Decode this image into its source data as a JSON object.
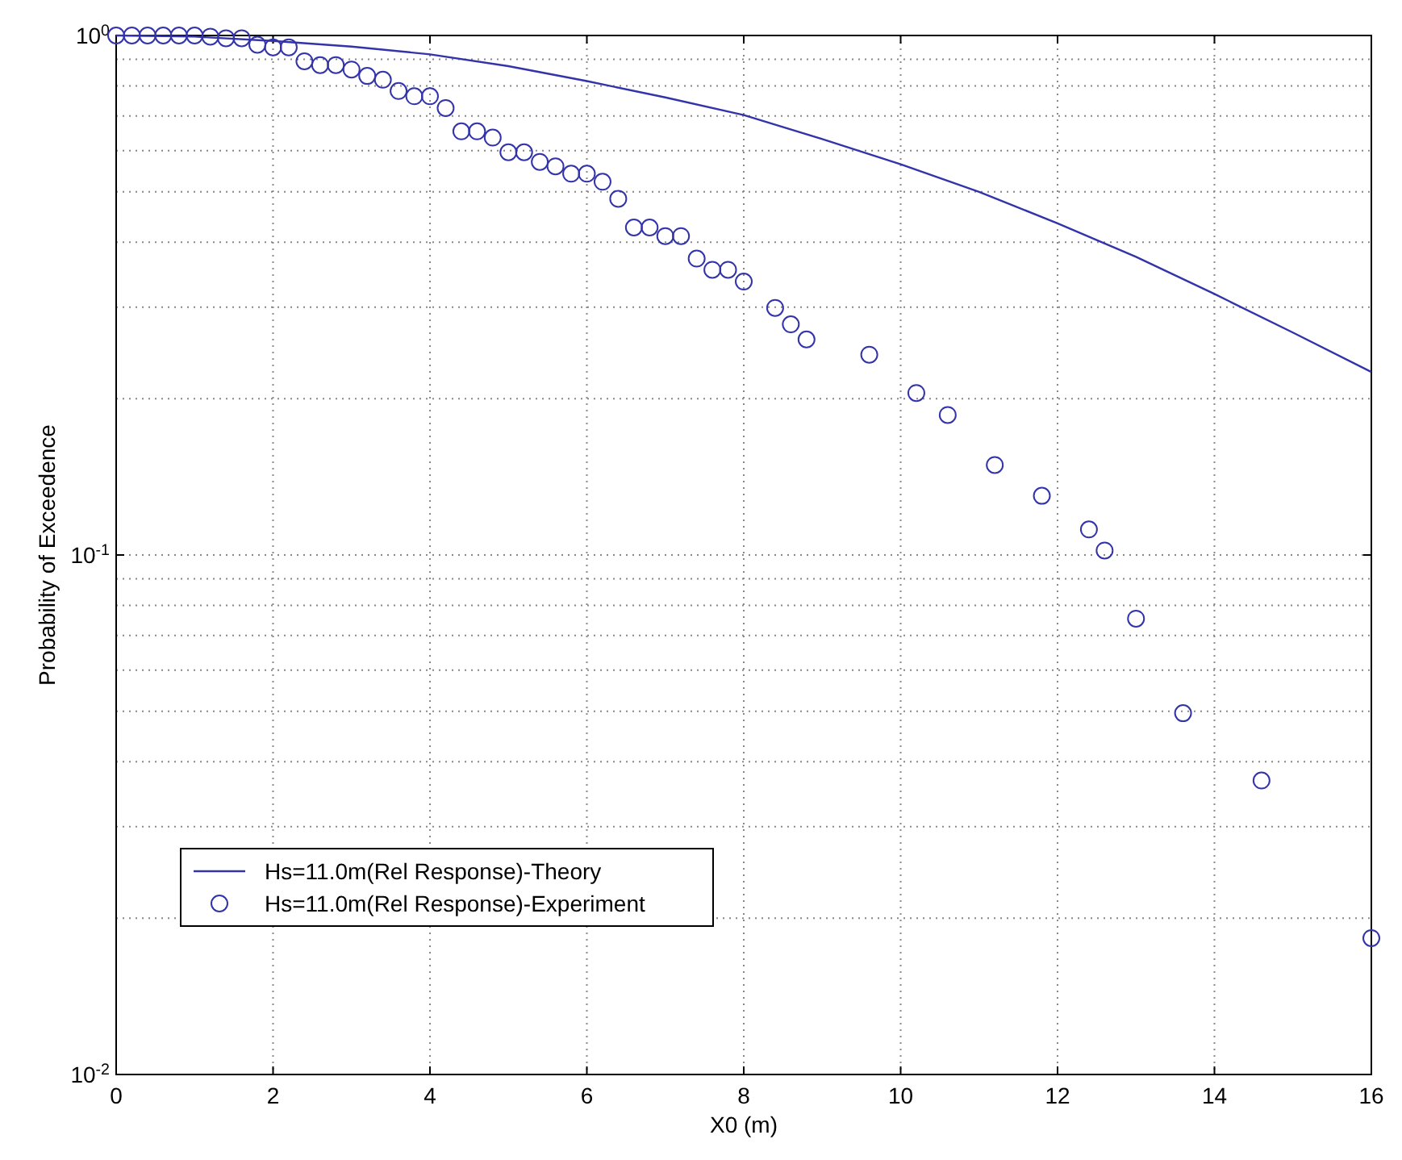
{
  "chart_data": {
    "type": "scatter",
    "xlabel": "X0 (m)",
    "ylabel": "Probability of Exceedence",
    "xlim": [
      0,
      16
    ],
    "xticks": [
      0,
      2,
      4,
      6,
      8,
      10,
      12,
      14,
      16
    ],
    "ylim": [
      0.01,
      1
    ],
    "yticks": [
      {
        "value": 0.01,
        "label": "10$^{-2}$"
      },
      {
        "value": 0.1,
        "label": "10$^{-1}$"
      },
      {
        "value": 1,
        "label": "10$^{0}$"
      }
    ],
    "log": "y",
    "grid": true,
    "legend": "bottom left",
    "series": [
      {
        "name": "Hs=11.0m(Rel Response)-Theory",
        "type": "line",
        "marker": "none",
        "line_style": "solid",
        "color": "#3333aa",
        "x": [
          0,
          1,
          2,
          3,
          4,
          5,
          6,
          7,
          8,
          9,
          10,
          11,
          12,
          13,
          14,
          15,
          16
        ],
        "values": [
          1.0,
          0.995,
          0.976,
          0.952,
          0.92,
          0.873,
          0.817,
          0.76,
          0.703,
          0.632,
          0.565,
          0.5,
          0.435,
          0.375,
          0.318,
          0.268,
          0.225
        ]
      },
      {
        "name": "Hs=11.0m(Rel Response)-Experiment",
        "marker": "circle",
        "color": "#3333aa",
        "x": [
          0,
          0.2,
          0.4,
          0.6,
          0.8,
          1.0,
          1.2,
          1.4,
          1.6,
          1.8,
          2.0,
          2.2,
          2.4,
          2.6,
          2.8,
          3.0,
          3.2,
          3.4,
          3.6,
          3.8,
          4.0,
          4.2,
          4.4,
          4.6,
          4.8,
          5.0,
          5.2,
          5.4,
          5.6,
          5.8,
          6.0,
          6.2,
          6.4,
          6.6,
          6.8,
          7.0,
          7.2,
          7.4,
          7.6,
          7.8,
          8.0,
          8.4,
          8.6,
          8.8,
          9.6,
          10.2,
          10.6,
          11.2,
          11.8,
          12.4,
          12.6,
          13.0,
          13.6,
          14.6,
          16.0
        ],
        "values": [
          1.0,
          1.0,
          1.0,
          1.0,
          1.0,
          1.0,
          0.995,
          0.988,
          0.988,
          0.96,
          0.949,
          0.949,
          0.892,
          0.877,
          0.877,
          0.86,
          0.836,
          0.822,
          0.782,
          0.764,
          0.764,
          0.725,
          0.654,
          0.654,
          0.636,
          0.596,
          0.596,
          0.571,
          0.56,
          0.542,
          0.542,
          0.523,
          0.485,
          0.427,
          0.427,
          0.411,
          0.411,
          0.372,
          0.354,
          0.354,
          0.336,
          0.299,
          0.278,
          0.26,
          0.243,
          0.205,
          0.186,
          0.149,
          0.13,
          0.112,
          0.102,
          0.0754,
          0.0496,
          0.0368,
          0.0183
        ]
      }
    ]
  }
}
